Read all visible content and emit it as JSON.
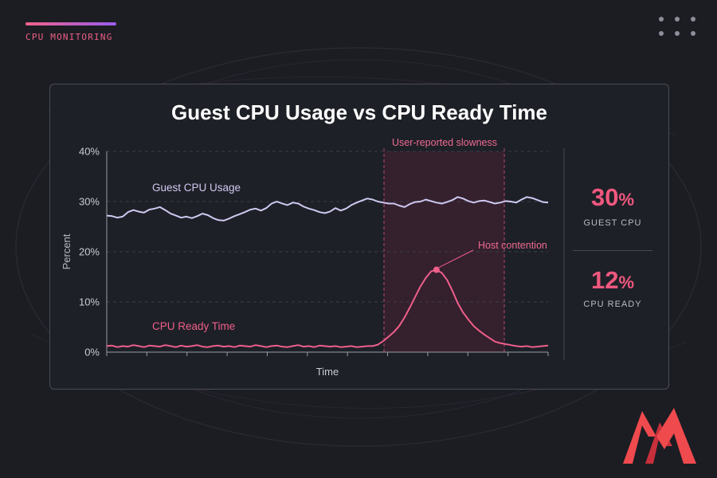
{
  "header": {
    "section_label": "CPU MONITORING"
  },
  "chart_data": {
    "type": "line",
    "title": "Guest CPU Usage vs CPU Ready Time",
    "xlabel": "Time",
    "ylabel": "Percent",
    "ylim": [
      0,
      40
    ],
    "yticks": [
      "0%",
      "10%",
      "20%",
      "30%",
      "40%"
    ],
    "grid": true,
    "series": [
      {
        "name": "Guest CPU Usage",
        "color": "#cfc9f2",
        "values": [
          27.2,
          27.1,
          26.8,
          27.0,
          27.9,
          28.3,
          28.0,
          27.8,
          28.4,
          28.6,
          28.9,
          28.3,
          27.6,
          27.2,
          26.8,
          27.0,
          26.7,
          27.1,
          27.6,
          27.3,
          26.7,
          26.3,
          26.2,
          26.6,
          27.1,
          27.5,
          27.9,
          28.4,
          28.6,
          28.2,
          28.7,
          29.6,
          30.0,
          29.6,
          29.3,
          29.8,
          29.6,
          29.0,
          28.6,
          28.3,
          27.9,
          27.7,
          28.0,
          28.7,
          28.2,
          28.6,
          29.3,
          29.8,
          30.2,
          30.6,
          30.4,
          30.0,
          29.8,
          29.6,
          29.6,
          29.2,
          28.9,
          29.5,
          29.9,
          30.0,
          30.4,
          30.1,
          29.8,
          29.6,
          29.9,
          30.3,
          30.9,
          30.6,
          30.1,
          29.8,
          30.1,
          30.2,
          29.9,
          29.6,
          29.8,
          30.1,
          30.0,
          29.8,
          30.4,
          30.9,
          30.7,
          30.3,
          29.9,
          29.8
        ]
      },
      {
        "name": "CPU Ready Time",
        "color": "#ef5f8a",
        "values": [
          1.2,
          1.3,
          1.0,
          1.2,
          1.1,
          1.4,
          1.2,
          1.0,
          1.3,
          1.2,
          1.1,
          1.4,
          1.2,
          1.0,
          1.3,
          1.1,
          1.2,
          1.4,
          1.1,
          1.0,
          1.2,
          1.3,
          1.1,
          1.2,
          1.0,
          1.3,
          1.2,
          1.1,
          1.4,
          1.2,
          1.0,
          1.2,
          1.3,
          1.1,
          1.0,
          1.2,
          1.4,
          1.1,
          1.2,
          1.0,
          1.3,
          1.2,
          1.1,
          1.2,
          1.0,
          1.1,
          1.2,
          1.0,
          1.1,
          1.2,
          1.2,
          1.5,
          2.2,
          3.1,
          4.0,
          5.2,
          6.9,
          8.9,
          11.0,
          13.1,
          14.8,
          16.1,
          16.4,
          15.8,
          14.4,
          12.2,
          9.8,
          7.9,
          6.5,
          5.2,
          4.3,
          3.5,
          2.8,
          2.1,
          1.8,
          1.6,
          1.4,
          1.2,
          1.1,
          1.2,
          1.0,
          1.1,
          1.2,
          1.3
        ]
      }
    ],
    "annotations": {
      "highlight_label": "User-reported slowness",
      "peak_label": "Host contention"
    }
  },
  "stats": [
    {
      "value": "30",
      "unit": "%",
      "label": "GUEST CPU"
    },
    {
      "value": "12",
      "unit": "%",
      "label": "CPU READY"
    }
  ]
}
